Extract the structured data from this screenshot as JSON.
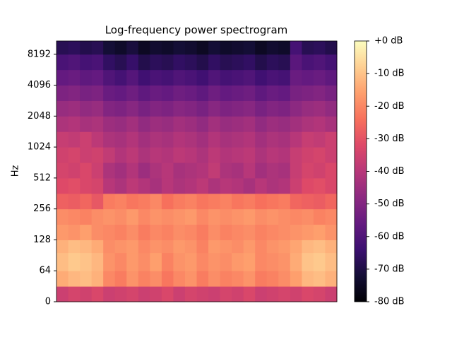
{
  "chart_data": {
    "type": "spectrogram",
    "title": "Log-frequency power spectrogram",
    "ylabel": "Hz",
    "yscale": "symlog",
    "linthresh": 64,
    "ylim": [
      0,
      11025
    ],
    "yticks": [
      0,
      64,
      128,
      256,
      512,
      1024,
      2048,
      4096,
      8192
    ],
    "y_edges": [
      0,
      32,
      64,
      96,
      128,
      181,
      256,
      362,
      512,
      724,
      1024,
      1448,
      2048,
      2896,
      4096,
      5793,
      8192,
      11025
    ],
    "colormap": "magma",
    "clim": [
      -80,
      0
    ],
    "cticks": [
      {
        "value": 0,
        "label": "+0 dB"
      },
      {
        "value": -10,
        "label": "-10 dB"
      },
      {
        "value": -20,
        "label": "-20 dB"
      },
      {
        "value": -30,
        "label": "-30 dB"
      },
      {
        "value": -40,
        "label": "-40 dB"
      },
      {
        "value": -50,
        "label": "-50 dB"
      },
      {
        "value": -60,
        "label": "-60 dB"
      },
      {
        "value": -70,
        "label": "-70 dB"
      },
      {
        "value": -80,
        "label": "-80 dB"
      }
    ],
    "z": [
      [
        -36,
        -34,
        -35,
        -33,
        -36,
        -35,
        -34,
        -36,
        -35,
        -33,
        -36,
        -34,
        -35,
        -36,
        -34,
        -35,
        -33,
        -36,
        -35,
        -34,
        -35,
        -33,
        -34,
        -36
      ],
      [
        -14,
        -12,
        -11,
        -13,
        -20,
        -22,
        -18,
        -21,
        -19,
        -23,
        -20,
        -18,
        -22,
        -19,
        -21,
        -20,
        -18,
        -22,
        -21,
        -19,
        -16,
        -12,
        -11,
        -13
      ],
      [
        -11,
        -9,
        -10,
        -12,
        -18,
        -20,
        -17,
        -19,
        -16,
        -21,
        -18,
        -17,
        -20,
        -18,
        -19,
        -17,
        -16,
        -20,
        -19,
        -18,
        -14,
        -10,
        -9,
        -11
      ],
      [
        -13,
        -11,
        -12,
        -14,
        -19,
        -18,
        -17,
        -20,
        -18,
        -19,
        -17,
        -18,
        -21,
        -17,
        -18,
        -19,
        -17,
        -20,
        -18,
        -17,
        -15,
        -12,
        -11,
        -13
      ],
      [
        -17,
        -18,
        -16,
        -19,
        -20,
        -21,
        -19,
        -22,
        -20,
        -21,
        -19,
        -20,
        -22,
        -19,
        -21,
        -20,
        -19,
        -21,
        -20,
        -19,
        -18,
        -17,
        -16,
        -18
      ],
      [
        -19,
        -20,
        -21,
        -19,
        -18,
        -19,
        -17,
        -20,
        -18,
        -19,
        -18,
        -17,
        -20,
        -18,
        -19,
        -18,
        -17,
        -19,
        -18,
        -19,
        -20,
        -19,
        -21,
        -20
      ],
      [
        -27,
        -28,
        -26,
        -29,
        -22,
        -21,
        -23,
        -22,
        -20,
        -24,
        -22,
        -21,
        -23,
        -22,
        -21,
        -23,
        -22,
        -24,
        -23,
        -22,
        -26,
        -27,
        -28,
        -26
      ],
      [
        -32,
        -31,
        -33,
        -34,
        -40,
        -42,
        -39,
        -41,
        -43,
        -40,
        -42,
        -41,
        -39,
        -42,
        -40,
        -41,
        -43,
        -40,
        -42,
        -41,
        -36,
        -32,
        -31,
        -33
      ],
      [
        -34,
        -35,
        -33,
        -36,
        -42,
        -44,
        -41,
        -45,
        -42,
        -40,
        -43,
        -42,
        -41,
        -38,
        -42,
        -43,
        -40,
        -44,
        -42,
        -43,
        -37,
        -34,
        -35,
        -33
      ],
      [
        -35,
        -34,
        -36,
        -35,
        -38,
        -41,
        -39,
        -42,
        -40,
        -41,
        -39,
        -40,
        -42,
        -39,
        -41,
        -40,
        -39,
        -42,
        -40,
        -41,
        -37,
        -35,
        -34,
        -36
      ],
      [
        -37,
        -38,
        -36,
        -39,
        -42,
        -43,
        -41,
        -44,
        -42,
        -43,
        -41,
        -42,
        -44,
        -41,
        -43,
        -42,
        -41,
        -44,
        -42,
        -43,
        -40,
        -37,
        -38,
        -36
      ],
      [
        -42,
        -41,
        -43,
        -42,
        -45,
        -46,
        -44,
        -47,
        -45,
        -46,
        -44,
        -45,
        -47,
        -44,
        -46,
        -45,
        -44,
        -47,
        -45,
        -46,
        -44,
        -42,
        -41,
        -43
      ],
      [
        -46,
        -45,
        -47,
        -46,
        -50,
        -51,
        -49,
        -52,
        -50,
        -51,
        -49,
        -50,
        -52,
        -49,
        -51,
        -50,
        -49,
        -52,
        -50,
        -51,
        -48,
        -46,
        -45,
        -47
      ],
      [
        -51,
        -50,
        -52,
        -51,
        -55,
        -56,
        -54,
        -57,
        -55,
        -56,
        -54,
        -55,
        -57,
        -54,
        -56,
        -55,
        -54,
        -57,
        -55,
        -56,
        -52,
        -51,
        -50,
        -52
      ],
      [
        -56,
        -55,
        -57,
        -56,
        -60,
        -62,
        -59,
        -63,
        -61,
        -62,
        -60,
        -61,
        -63,
        -60,
        -62,
        -61,
        -60,
        -63,
        -61,
        -62,
        -55,
        -56,
        -55,
        -57
      ],
      [
        -61,
        -60,
        -62,
        -61,
        -66,
        -68,
        -65,
        -69,
        -67,
        -68,
        -66,
        -67,
        -69,
        -66,
        -68,
        -67,
        -66,
        -69,
        -67,
        -68,
        -58,
        -61,
        -60,
        -62
      ],
      [
        -68,
        -67,
        -69,
        -68,
        -72,
        -74,
        -71,
        -75,
        -73,
        -74,
        -72,
        -73,
        -75,
        -72,
        -74,
        -73,
        -72,
        -75,
        -73,
        -74,
        -62,
        -68,
        -67,
        -69
      ]
    ]
  }
}
